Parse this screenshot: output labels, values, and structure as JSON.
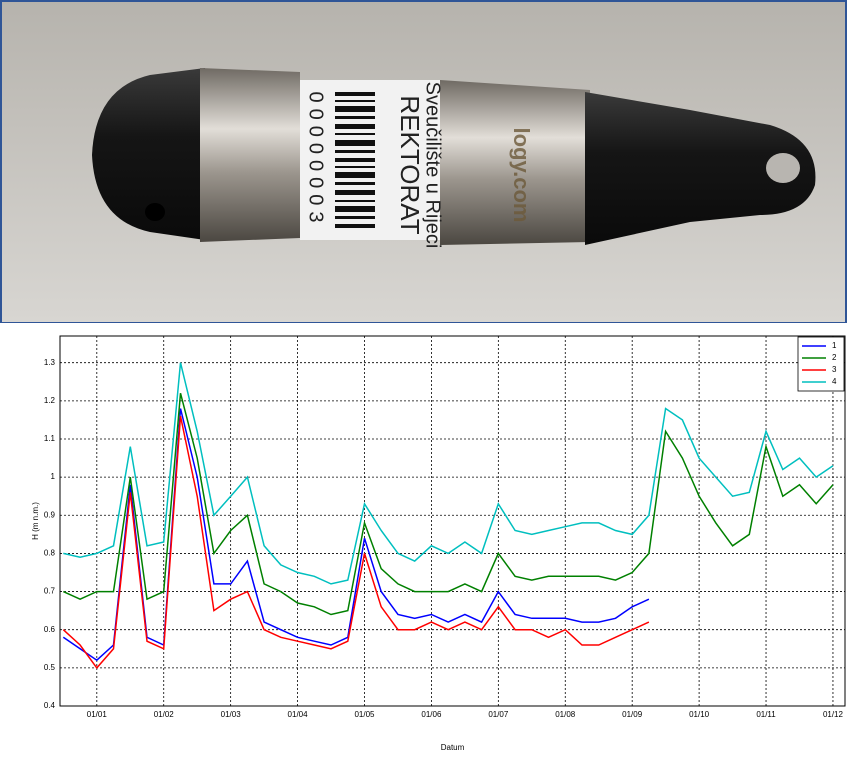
{
  "photo": {
    "university": "Sveučilište u Rijeci",
    "department": "REKTORAT",
    "serial": "00000003",
    "brand": "logy.com"
  },
  "chart_data": {
    "type": "line",
    "xlabel": "Datum",
    "ylabel": "H (m n.m.)",
    "x": [
      0.5,
      0.75,
      1.0,
      1.25,
      1.5,
      1.75,
      2.0,
      2.25,
      2.5,
      2.75,
      3.0,
      3.25,
      3.5,
      3.75,
      4.0,
      4.25,
      4.5,
      4.75,
      5.0,
      5.25,
      5.5,
      5.75,
      6.0,
      6.25,
      6.5,
      6.75,
      7.0,
      7.25,
      7.5,
      7.75,
      8.0,
      8.25,
      8.5,
      8.75,
      9.0,
      9.25,
      9.5,
      9.75,
      10.0,
      10.25,
      10.5,
      10.75,
      11.0,
      11.25,
      11.5,
      11.75,
      12.0
    ],
    "series": [
      {
        "name": "1",
        "color": "#0000ff",
        "values": [
          0.58,
          0.55,
          0.52,
          0.56,
          0.98,
          0.58,
          0.56,
          1.18,
          1.0,
          0.72,
          0.72,
          0.78,
          0.62,
          0.6,
          0.58,
          0.57,
          0.56,
          0.58,
          0.84,
          0.7,
          0.64,
          0.63,
          0.64,
          0.62,
          0.64,
          0.62,
          0.7,
          0.64,
          0.63,
          0.63,
          0.63,
          0.62,
          0.62,
          0.63,
          0.66,
          0.68,
          null,
          null,
          null,
          null,
          null,
          null,
          null,
          null,
          null,
          null,
          null
        ]
      },
      {
        "name": "2",
        "color": "#008000",
        "values": [
          0.7,
          0.68,
          0.7,
          0.7,
          1.0,
          0.68,
          0.7,
          1.22,
          1.05,
          0.8,
          0.86,
          0.9,
          0.72,
          0.7,
          0.67,
          0.66,
          0.64,
          0.65,
          0.88,
          0.76,
          0.72,
          0.7,
          0.7,
          0.7,
          0.72,
          0.7,
          0.8,
          0.74,
          0.73,
          0.74,
          0.74,
          0.74,
          0.74,
          0.73,
          0.75,
          0.8,
          1.12,
          1.05,
          0.95,
          0.88,
          0.82,
          0.85,
          1.08,
          0.95,
          0.98,
          0.93,
          0.98
        ]
      },
      {
        "name": "3",
        "color": "#ff0000",
        "values": [
          0.6,
          0.56,
          0.5,
          0.55,
          0.96,
          0.57,
          0.55,
          1.16,
          0.95,
          0.65,
          0.68,
          0.7,
          0.6,
          0.58,
          0.57,
          0.56,
          0.55,
          0.57,
          0.8,
          0.66,
          0.6,
          0.6,
          0.62,
          0.6,
          0.62,
          0.6,
          0.66,
          0.6,
          0.6,
          0.58,
          0.6,
          0.56,
          0.56,
          0.58,
          0.6,
          0.62,
          null,
          null,
          null,
          null,
          null,
          null,
          null,
          null,
          null,
          null,
          null
        ]
      },
      {
        "name": "4",
        "color": "#00bfbf",
        "values": [
          0.8,
          0.79,
          0.8,
          0.82,
          1.08,
          0.82,
          0.83,
          1.3,
          1.12,
          0.9,
          0.95,
          1.0,
          0.82,
          0.77,
          0.75,
          0.74,
          0.72,
          0.73,
          0.93,
          0.86,
          0.8,
          0.78,
          0.82,
          0.8,
          0.83,
          0.8,
          0.93,
          0.86,
          0.85,
          0.86,
          0.87,
          0.88,
          0.88,
          0.86,
          0.85,
          0.9,
          1.18,
          1.15,
          1.05,
          1.0,
          0.95,
          0.96,
          1.12,
          1.02,
          1.05,
          1.0,
          1.03
        ]
      }
    ],
    "xlim": [
      0.45,
      12.18
    ],
    "xticks": [
      {
        "value": 1,
        "label": "01/01"
      },
      {
        "value": 2,
        "label": "01/02"
      },
      {
        "value": 3,
        "label": "01/03"
      },
      {
        "value": 4,
        "label": "01/04"
      },
      {
        "value": 5,
        "label": "01/05"
      },
      {
        "value": 6,
        "label": "01/06"
      },
      {
        "value": 7,
        "label": "01/07"
      },
      {
        "value": 8,
        "label": "01/08"
      },
      {
        "value": 9,
        "label": "01/09"
      },
      {
        "value": 10,
        "label": "01/10"
      },
      {
        "value": 11,
        "label": "01/11"
      },
      {
        "value": 12,
        "label": "01/12"
      }
    ],
    "ylim": [
      0.4,
      1.37
    ],
    "yticks": [
      0.4,
      0.5,
      0.6,
      0.7,
      0.8,
      0.9,
      1,
      1.1,
      1.2,
      1.3
    ],
    "grid": true,
    "legend": "top-right"
  }
}
